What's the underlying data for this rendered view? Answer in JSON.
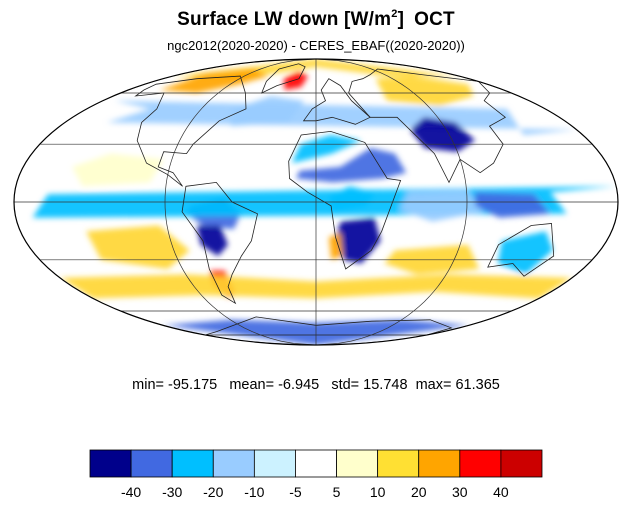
{
  "title": {
    "main": "Surface LW down [W/m",
    "superscript": "2",
    "close": "]",
    "month": "OCT"
  },
  "subtitle": "ngc2012(2020-2020) - CERES_EBAF((2020-2020))",
  "stats": {
    "min_label": "min=",
    "min": "-95.175",
    "mean_label": "mean=",
    "mean": "-6.945",
    "std_label": "std=",
    "std": "15.748",
    "max_label": "max=",
    "max": "61.365"
  },
  "map": {
    "projection": "mollweide",
    "center_longitude": 0,
    "graticule_latitudes": [
      -60,
      -30,
      0,
      30,
      60
    ],
    "graticule_longitudes": [
      -180,
      -90,
      0,
      90,
      180
    ],
    "background_value_color": "#ffffff",
    "anomaly_patches": [
      {
        "region": "arctic-ocean-north",
        "color": "#ffd633"
      },
      {
        "region": "alaska-canada-arctic",
        "color": "#ffa500"
      },
      {
        "region": "greenland-margin",
        "color": "#ff0000"
      },
      {
        "region": "siberia",
        "color": "#ffd633"
      },
      {
        "region": "north-atlantic",
        "color": "#99ccff"
      },
      {
        "region": "north-pacific",
        "color": "#99ccff"
      },
      {
        "region": "sahara-arabia",
        "color": "#4169e1"
      },
      {
        "region": "tibet-central-asia",
        "color": "#000099"
      },
      {
        "region": "north-africa-dry",
        "color": "#00bfff"
      },
      {
        "region": "central-africa",
        "color": "#00bfff"
      },
      {
        "region": "southern-africa",
        "color": "#000099"
      },
      {
        "region": "namibia-coast",
        "color": "#ffa500"
      },
      {
        "region": "amazon",
        "color": "#4169e1"
      },
      {
        "region": "bolivia-andes",
        "color": "#000099"
      },
      {
        "region": "patagonia",
        "color": "#ff0000"
      },
      {
        "region": "southern-ocean-band",
        "color": "#ffd633"
      },
      {
        "region": "southeast-pacific",
        "color": "#ffd633"
      },
      {
        "region": "south-indian-ocean",
        "color": "#ffd633"
      },
      {
        "region": "australia",
        "color": "#00bfff"
      },
      {
        "region": "antarctica",
        "color": "#4169e1"
      },
      {
        "region": "tropical-pacific-west",
        "color": "#00bfff"
      },
      {
        "region": "indian-ocean-equatorial",
        "color": "#99ccff"
      },
      {
        "region": "east-pacific-north",
        "color": "#ffffcc"
      },
      {
        "region": "maritime-continent",
        "color": "#4169e1"
      }
    ]
  },
  "colorbar": {
    "colors": [
      "#00008b",
      "#4169e1",
      "#00bfff",
      "#99ccff",
      "#ccf2ff",
      "#ffffff",
      "#ffffcc",
      "#ffe033",
      "#ffa500",
      "#ff0000",
      "#cc0000"
    ],
    "ticks": [
      "-40",
      "-30",
      "-20",
      "-10",
      "-5",
      "5",
      "10",
      "20",
      "30",
      "40"
    ]
  }
}
